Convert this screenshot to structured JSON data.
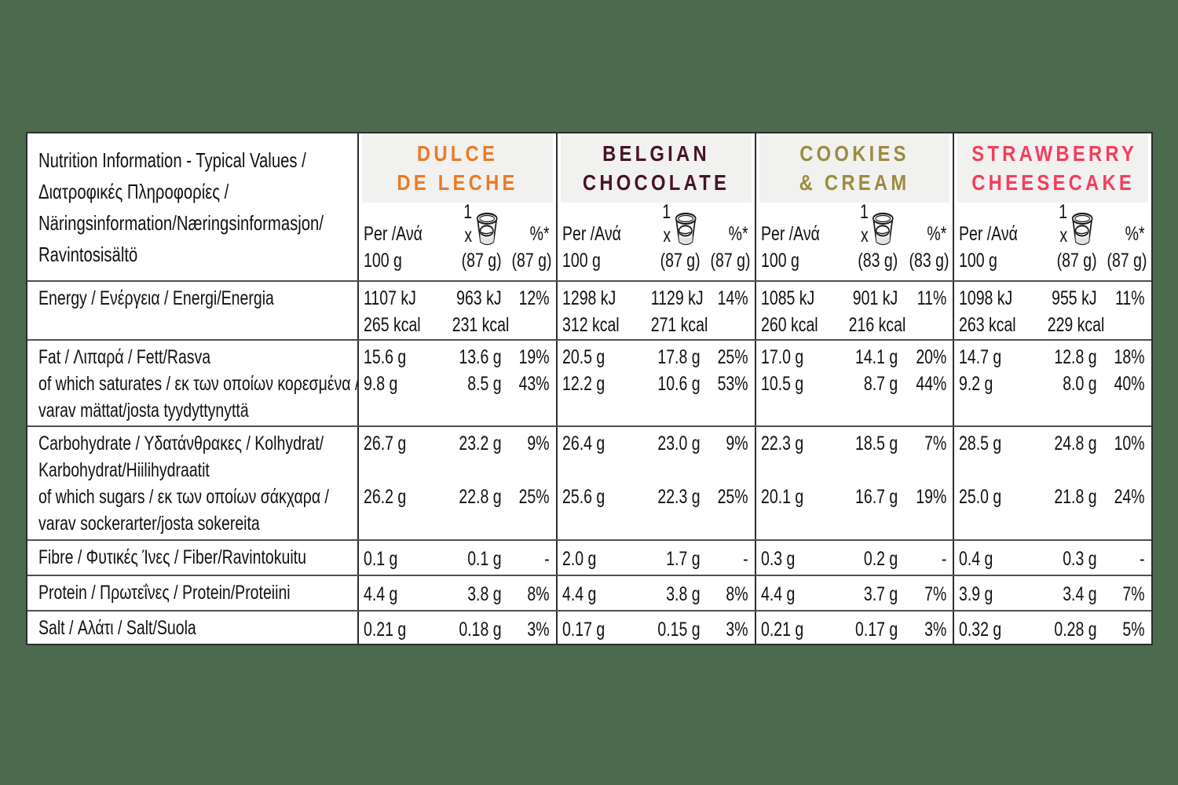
{
  "page": {
    "background_color": "#4C6A4E"
  },
  "table": {
    "title_lines": [
      "Nutrition Information - Typical Values /",
      "Διατροφικές Πληροφορίες /",
      "Näringsinformation/Næringsinformasjon/",
      "Ravintosisältö"
    ],
    "subheader": {
      "per_line1": "Per /Ανά",
      "per_line2": "100 g",
      "portion_line1": "1 x",
      "pct_line1": "%*"
    },
    "products": [
      {
        "id": "dulce-de-leche",
        "name_lines": [
          "DULCE",
          "DE LECHE"
        ],
        "color": "#EC7A25",
        "portion": "(87 g)"
      },
      {
        "id": "belgian-chocolate",
        "name_lines": [
          "BELGIAN",
          "CHOCOLATE"
        ],
        "color": "#471327",
        "portion": "(87 g)"
      },
      {
        "id": "cookies-and-cream",
        "name_lines": [
          "COOKIES",
          "& CREAM"
        ],
        "color": "#9B8C3F",
        "portion": "(83 g)"
      },
      {
        "id": "strawberry-cheesecake",
        "name_lines": [
          "STRAWBERRY",
          "CHEESECAKE"
        ],
        "color": "#F33E5C",
        "portion": "(87 g)"
      }
    ],
    "rows": [
      {
        "name": "energy",
        "label_lines": [
          "Energy / Ενέργεια / Energi/Energia"
        ],
        "cells": [
          {
            "per100": [
              "1107 kJ",
              "265 kcal"
            ],
            "portion": [
              "963 kJ",
              "231 kcal"
            ],
            "pct": [
              "12%"
            ]
          },
          {
            "per100": [
              "1298 kJ",
              "312 kcal"
            ],
            "portion": [
              "1129 kJ",
              "271 kcal"
            ],
            "pct": [
              "14%"
            ]
          },
          {
            "per100": [
              "1085 kJ",
              "260 kcal"
            ],
            "portion": [
              "901 kJ",
              "216 kcal"
            ],
            "pct": [
              "11%"
            ]
          },
          {
            "per100": [
              "1098 kJ",
              "263 kcal"
            ],
            "portion": [
              "955 kJ",
              "229 kcal"
            ],
            "pct": [
              "11%"
            ]
          }
        ]
      },
      {
        "name": "fat",
        "label_lines": [
          "Fat / Λιπαρά / Fett/Rasva",
          "of which saturates / εκ των οποίων κορεσμένα /",
          "varav mättat/josta tyydyttynyttä"
        ],
        "cells": [
          {
            "per100": [
              "15.6 g",
              "9.8 g"
            ],
            "portion": [
              "13.6 g",
              "8.5 g"
            ],
            "pct": [
              "19%",
              "43%"
            ]
          },
          {
            "per100": [
              "20.5 g",
              "12.2 g"
            ],
            "portion": [
              "17.8 g",
              "10.6 g"
            ],
            "pct": [
              "25%",
              "53%"
            ]
          },
          {
            "per100": [
              "17.0 g",
              "10.5 g"
            ],
            "portion": [
              "14.1 g",
              "8.7 g"
            ],
            "pct": [
              "20%",
              "44%"
            ]
          },
          {
            "per100": [
              "14.7 g",
              "9.2 g"
            ],
            "portion": [
              "12.8 g",
              "8.0 g"
            ],
            "pct": [
              "18%",
              "40%"
            ]
          }
        ]
      },
      {
        "name": "carbohydrate",
        "label_lines": [
          "Carbohydrate / Υδατάνθρακες / Kolhydrat/",
          "Karbohydrat/Hiilihydraatit",
          "of which sugars / εκ των οποίων σάκχαρα /",
          "varav sockerarter/josta sokereita"
        ],
        "cells": [
          {
            "per100": [
              "26.7 g",
              "",
              "26.2 g"
            ],
            "portion": [
              "23.2 g",
              "",
              "22.8 g"
            ],
            "pct": [
              "9%",
              "",
              "25%"
            ]
          },
          {
            "per100": [
              "26.4 g",
              "",
              "25.6 g"
            ],
            "portion": [
              "23.0 g",
              "",
              "22.3 g"
            ],
            "pct": [
              "9%",
              "",
              "25%"
            ]
          },
          {
            "per100": [
              "22.3 g",
              "",
              "20.1 g"
            ],
            "portion": [
              "18.5 g",
              "",
              "16.7 g"
            ],
            "pct": [
              "7%",
              "",
              "19%"
            ]
          },
          {
            "per100": [
              "28.5 g",
              "",
              "25.0 g"
            ],
            "portion": [
              "24.8 g",
              "",
              "21.8 g"
            ],
            "pct": [
              "10%",
              "",
              "24%"
            ]
          }
        ]
      },
      {
        "name": "fibre",
        "label_lines": [
          "Fibre / Φυτικές Ίνες / Fiber/Ravintokuitu"
        ],
        "cells": [
          {
            "per100": [
              "0.1 g"
            ],
            "portion": [
              "0.1 g"
            ],
            "pct": [
              "-"
            ]
          },
          {
            "per100": [
              "2.0 g"
            ],
            "portion": [
              "1.7 g"
            ],
            "pct": [
              "-"
            ]
          },
          {
            "per100": [
              "0.3 g"
            ],
            "portion": [
              "0.2 g"
            ],
            "pct": [
              "-"
            ]
          },
          {
            "per100": [
              "0.4 g"
            ],
            "portion": [
              "0.3 g"
            ],
            "pct": [
              "-"
            ]
          }
        ]
      },
      {
        "name": "protein",
        "label_lines": [
          "Protein / Πρωτεΐνες / Protein/Proteiini"
        ],
        "cells": [
          {
            "per100": [
              "4.4 g"
            ],
            "portion": [
              "3.8 g"
            ],
            "pct": [
              "8%"
            ]
          },
          {
            "per100": [
              "4.4 g"
            ],
            "portion": [
              "3.8 g"
            ],
            "pct": [
              "8%"
            ]
          },
          {
            "per100": [
              "4.4 g"
            ],
            "portion": [
              "3.7 g"
            ],
            "pct": [
              "7%"
            ]
          },
          {
            "per100": [
              "3.9 g"
            ],
            "portion": [
              "3.4 g"
            ],
            "pct": [
              "7%"
            ]
          }
        ]
      },
      {
        "name": "salt",
        "label_lines": [
          "Salt / Αλάτι / Salt/Suola"
        ],
        "cells": [
          {
            "per100": [
              "0.21 g"
            ],
            "portion": [
              "0.18 g"
            ],
            "pct": [
              "3%"
            ]
          },
          {
            "per100": [
              "0.17 g"
            ],
            "portion": [
              "0.15 g"
            ],
            "pct": [
              "3%"
            ]
          },
          {
            "per100": [
              "0.21 g"
            ],
            "portion": [
              "0.17 g"
            ],
            "pct": [
              "3%"
            ]
          },
          {
            "per100": [
              "0.32 g"
            ],
            "portion": [
              "0.28 g"
            ],
            "pct": [
              "5%"
            ]
          }
        ]
      }
    ],
    "icons": {
      "tub": "ice-cream-tub-icon"
    }
  }
}
